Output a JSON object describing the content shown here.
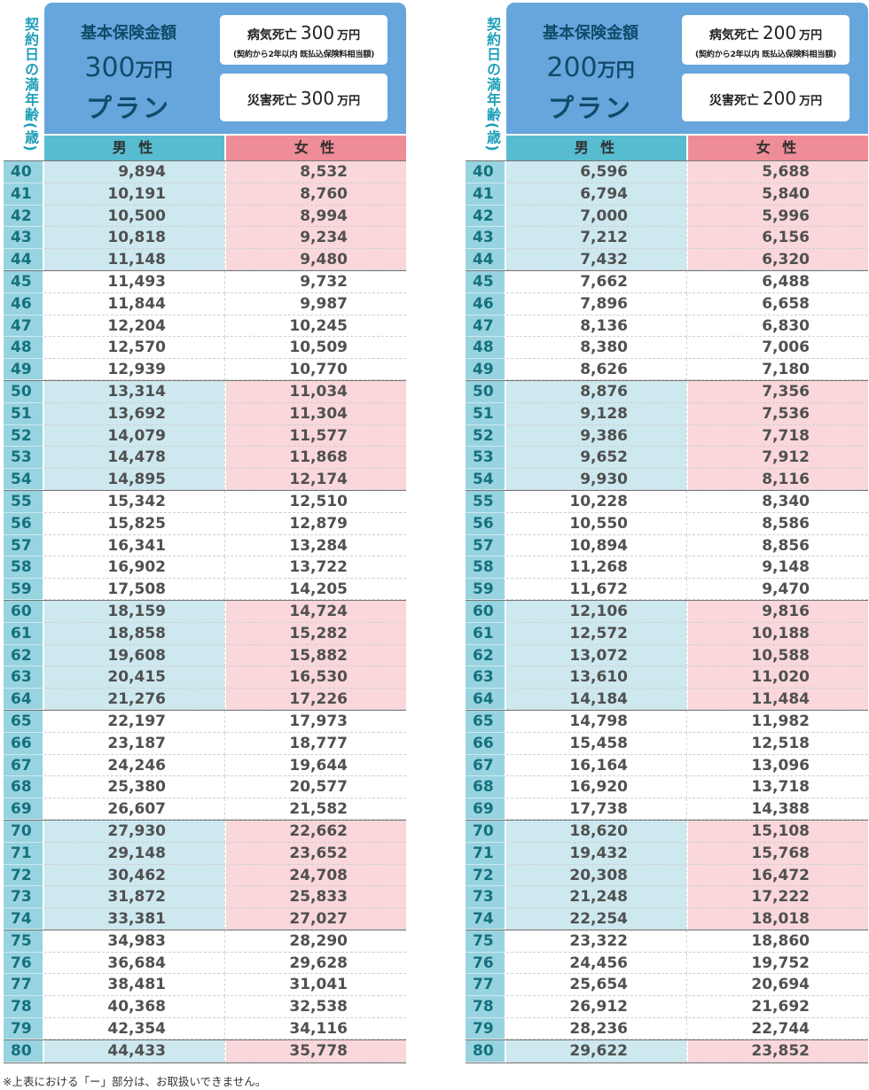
{
  "age_header": "契約日の満年齢(歳)",
  "male_label": "男 性",
  "female_label": "女 性",
  "footnote": "※上表における「ー」部分は、お取扱いできません。",
  "ages": [
    "40",
    "41",
    "42",
    "43",
    "44",
    "45",
    "46",
    "47",
    "48",
    "49",
    "50",
    "51",
    "52",
    "53",
    "54",
    "55",
    "56",
    "57",
    "58",
    "59",
    "60",
    "61",
    "62",
    "63",
    "64",
    "65",
    "66",
    "67",
    "68",
    "69",
    "70",
    "71",
    "72",
    "73",
    "74",
    "75",
    "76",
    "77",
    "78",
    "79",
    "80"
  ],
  "plans": [
    {
      "basic_label": "基本保険金額",
      "amount_num": "300",
      "amount_unit": "万円",
      "plan_word": "プラン",
      "sick_label": "病気死亡",
      "sick_amount": "300",
      "sick_unit": "万円",
      "sick_note": "(契約から2年以内 既払込保険料相当額)",
      "accident_label": "災害死亡",
      "accident_amount": "300",
      "accident_unit": "万円",
      "male": [
        "9,894",
        "10,191",
        "10,500",
        "10,818",
        "11,148",
        "11,493",
        "11,844",
        "12,204",
        "12,570",
        "12,939",
        "13,314",
        "13,692",
        "14,079",
        "14,478",
        "14,895",
        "15,342",
        "15,825",
        "16,341",
        "16,902",
        "17,508",
        "18,159",
        "18,858",
        "19,608",
        "20,415",
        "21,276",
        "22,197",
        "23,187",
        "24,246",
        "25,380",
        "26,607",
        "27,930",
        "29,148",
        "30,462",
        "31,872",
        "33,381",
        "34,983",
        "36,684",
        "38,481",
        "40,368",
        "42,354",
        "44,433"
      ],
      "female": [
        "8,532",
        "8,760",
        "8,994",
        "9,234",
        "9,480",
        "9,732",
        "9,987",
        "10,245",
        "10,509",
        "10,770",
        "11,034",
        "11,304",
        "11,577",
        "11,868",
        "12,174",
        "12,510",
        "12,879",
        "13,284",
        "13,722",
        "14,205",
        "14,724",
        "15,282",
        "15,882",
        "16,530",
        "17,226",
        "17,973",
        "18,777",
        "19,644",
        "20,577",
        "21,582",
        "22,662",
        "23,652",
        "24,708",
        "25,833",
        "27,027",
        "28,290",
        "29,628",
        "31,041",
        "32,538",
        "34,116",
        "35,778"
      ]
    },
    {
      "basic_label": "基本保険金額",
      "amount_num": "200",
      "amount_unit": "万円",
      "plan_word": "プラン",
      "sick_label": "病気死亡",
      "sick_amount": "200",
      "sick_unit": "万円",
      "sick_note": "(契約から2年以内 既払込保険料相当額)",
      "accident_label": "災害死亡",
      "accident_amount": "200",
      "accident_unit": "万円",
      "male": [
        "6,596",
        "6,794",
        "7,000",
        "7,212",
        "7,432",
        "7,662",
        "7,896",
        "8,136",
        "8,380",
        "8,626",
        "8,876",
        "9,128",
        "9,386",
        "9,652",
        "9,930",
        "10,228",
        "10,550",
        "10,894",
        "11,268",
        "11,672",
        "12,106",
        "12,572",
        "13,072",
        "13,610",
        "14,184",
        "14,798",
        "15,458",
        "16,164",
        "16,920",
        "17,738",
        "18,620",
        "19,432",
        "20,308",
        "21,248",
        "22,254",
        "23,322",
        "24,456",
        "25,654",
        "26,912",
        "28,236",
        "29,622"
      ],
      "female": [
        "5,688",
        "5,840",
        "5,996",
        "6,156",
        "6,320",
        "6,488",
        "6,658",
        "6,830",
        "7,006",
        "7,180",
        "7,356",
        "7,536",
        "7,718",
        "7,912",
        "8,116",
        "8,340",
        "8,586",
        "8,856",
        "9,148",
        "9,470",
        "9,816",
        "10,188",
        "10,588",
        "11,020",
        "11,484",
        "11,982",
        "12,518",
        "13,096",
        "13,718",
        "14,388",
        "15,108",
        "15,768",
        "16,472",
        "17,222",
        "18,018",
        "18,860",
        "19,752",
        "20,694",
        "21,692",
        "22,744",
        "23,852"
      ]
    }
  ]
}
